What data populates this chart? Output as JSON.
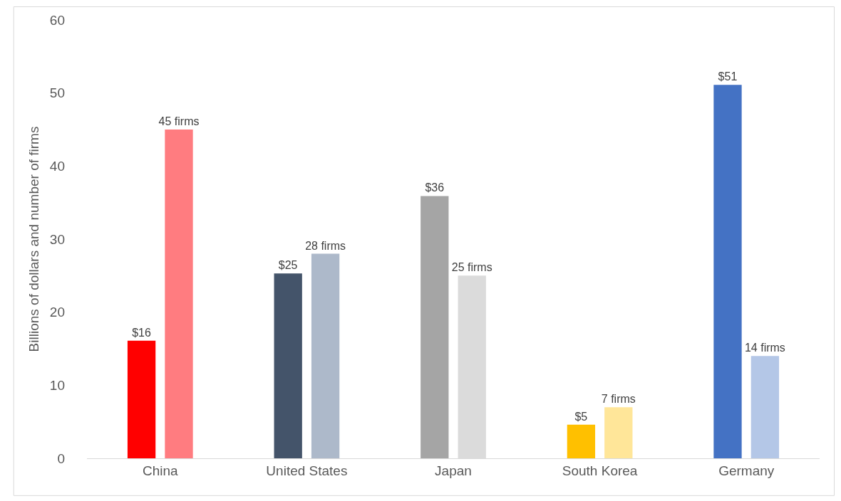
{
  "chart_data": {
    "type": "bar",
    "ylabel": "Billions of dollars and number of firms",
    "categories": [
      "China",
      "United States",
      "Japan",
      "South Korea",
      "Germany"
    ],
    "series": [
      {
        "colors": [
          "#ff0000",
          "#44546a",
          "#a5a5a5",
          "#ffc000",
          "#4472c4"
        ],
        "values": [
          16.1,
          25.3,
          35.9,
          4.6,
          51.1
        ],
        "value_labels": [
          "$16",
          "$25",
          "$36",
          "$5",
          "$51"
        ]
      },
      {
        "colors": [
          "#ff7c80",
          "#adb9ca",
          "#dbdbdb",
          "#ffe699",
          "#b4c7e7"
        ],
        "values": [
          45,
          28,
          25,
          7,
          14
        ],
        "value_labels": [
          "45 firms",
          "28 firms",
          "25 firms",
          "7 firms",
          "14 firms"
        ]
      }
    ],
    "ylim": [
      0,
      60
    ],
    "yticks": [
      0,
      10,
      20,
      30,
      40,
      50,
      60
    ],
    "grid": false
  }
}
